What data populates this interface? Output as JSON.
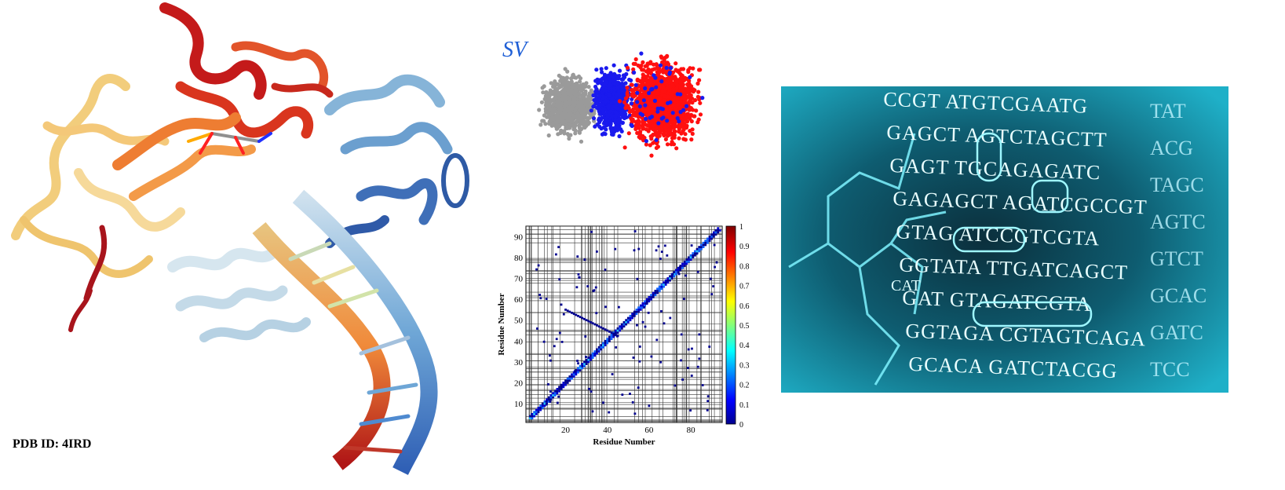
{
  "protein": {
    "pdb_label": "PDB ID: 4IRD"
  },
  "scatter": {
    "label": "SV",
    "colors": {
      "group_a": "#9a9a9a",
      "group_b": "#1a1aee",
      "group_c": "#ff1010"
    }
  },
  "contact_map": {
    "xlabel": "Residue Number",
    "ylabel": "Residue Number",
    "x_ticks": [
      "20",
      "40",
      "60",
      "80"
    ],
    "y_ticks": [
      "10",
      "20",
      "30",
      "40",
      "50",
      "60",
      "70",
      "80",
      "90"
    ],
    "colorbar_ticks": [
      "0",
      "0.1",
      "0.2",
      "0.3",
      "0.4",
      "0.5",
      "0.6",
      "0.7",
      "0.8",
      "0.9",
      "1"
    ]
  },
  "dna_image": {
    "lines": [
      "CCGT   ATGTCGAATG",
      "GAGCT  AGTCTAGCTT",
      "GAGT   TGCAGAGATC",
      "GAGAGCT  AGATCGCCGT",
      "GTAG  ATCCGTCGTA",
      "GGTATA  TTGATCAGCT",
      "GAT  GTAGATCGTA",
      "GGTAGA  CGTAGTCAGA",
      "GCACA  GATCTACGG"
    ],
    "side_lines": [
      "TAT",
      "ACG",
      "TAGC",
      "AGTC",
      "GTCT",
      "GCAC",
      "GATC",
      "TCC"
    ],
    "overlay": "CAT"
  }
}
